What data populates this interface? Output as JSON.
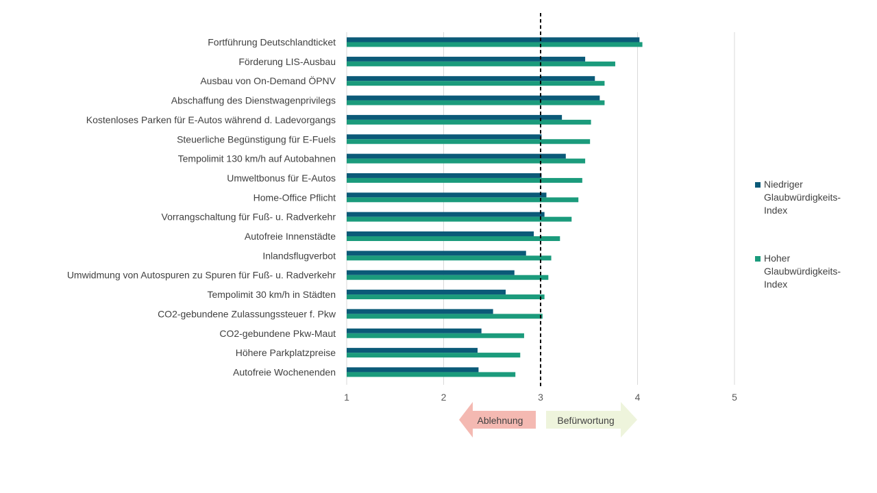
{
  "chart_data": {
    "type": "bar",
    "orientation": "horizontal",
    "categories": [
      "Fortführung Deutschlandticket",
      "Förderung LIS-Ausbau",
      "Ausbau von On-Demand ÖPNV",
      "Abschaffung des Dienstwagenprivilegs",
      "Kostenloses Parken für E-Autos während d. Ladevorgangs",
      "Steuerliche Begünstigung für E-Fuels",
      "Tempolimit 130 km/h auf Autobahnen",
      "Umweltbonus für E-Autos",
      "Home-Office Pflicht",
      "Vorrangschaltung für Fuß- u. Radverkehr",
      "Autofreie Innenstädte",
      "Inlandsflugverbot",
      "Umwidmung von Autospuren zu Spuren für Fuß- u. Radverkehr",
      "Tempolimit 30 km/h in Städten",
      "CO2-gebundene Zulassungssteuer f. Pkw",
      "CO2-gebundene Pkw-Maut",
      "Höhere Parkplatzpreise",
      "Autofreie Wochenenden"
    ],
    "series": [
      {
        "name": "Niedriger Glaubwürdigkeits-Index",
        "color": "#0B5A78",
        "values": [
          4.02,
          3.46,
          3.56,
          3.61,
          3.22,
          3.01,
          3.26,
          3.01,
          3.06,
          3.04,
          2.93,
          2.85,
          2.73,
          2.64,
          2.51,
          2.39,
          2.35,
          2.36
        ]
      },
      {
        "name": "Hoher Glaubwürdigkeits-Index",
        "color": "#1B9B7C",
        "values": [
          4.05,
          3.77,
          3.66,
          3.66,
          3.52,
          3.51,
          3.46,
          3.43,
          3.39,
          3.32,
          3.2,
          3.11,
          3.08,
          3.04,
          3.02,
          2.83,
          2.79,
          2.74
        ]
      }
    ],
    "legend_lines": [
      [
        "Niedriger",
        "Glaubwürdigkeits-",
        "Index"
      ],
      [
        "Hoher",
        "Glaubwürdigkeits-",
        "Index"
      ]
    ],
    "xlim": [
      1,
      5
    ],
    "x_ticks": [
      "1",
      "2",
      "3",
      "4",
      "5"
    ],
    "reference_line": 3,
    "legend_position": "right",
    "grid": "vertical",
    "annotations": {
      "left_arrow": {
        "label": "Ablehnung",
        "color": "#F4B9B2"
      },
      "right_arrow": {
        "label": "Befürwortung",
        "color": "#EEF4DC"
      }
    }
  }
}
